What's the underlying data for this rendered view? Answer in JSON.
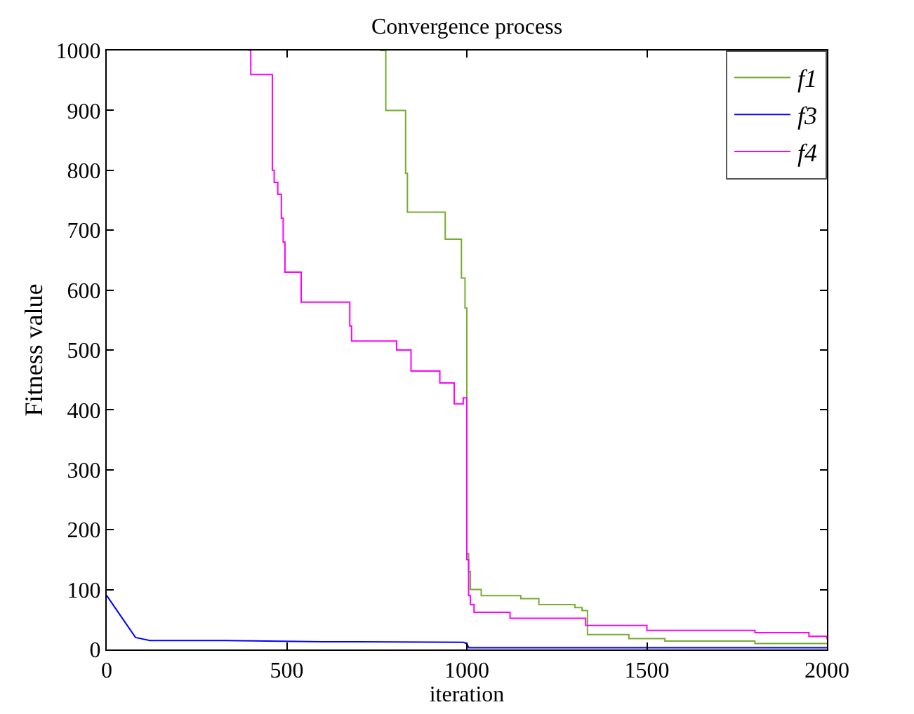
{
  "chart_data": {
    "type": "line",
    "title": "Convergence process",
    "xlabel": "iteration",
    "ylabel": "Fitness value",
    "xlim": [
      0,
      2000
    ],
    "xticks": [
      0,
      500,
      1000,
      1500,
      2000
    ],
    "ylim": [
      0,
      1000
    ],
    "yticks": [
      0,
      100,
      200,
      300,
      400,
      500,
      600,
      700,
      800,
      900,
      1000
    ],
    "grid": false,
    "legend": "top right",
    "marker": "none",
    "line_style": "solid",
    "series": [
      {
        "name": "f1",
        "type": "step",
        "color": "#77ac30",
        "x": [
          760,
          775,
          830,
          835,
          940,
          985,
          995,
          1000,
          1005,
          1010,
          1040,
          1150,
          1200,
          1300,
          1320,
          1335,
          1450,
          1550,
          1800,
          2000
        ],
        "values": [
          1000,
          900,
          795,
          730,
          685,
          620,
          570,
          160,
          130,
          100,
          90,
          85,
          75,
          70,
          65,
          25,
          18,
          14,
          10,
          10
        ]
      },
      {
        "name": "f3",
        "color": "#0000ff",
        "x": [
          0,
          80,
          120,
          330,
          600,
          990,
          1000,
          1005,
          2000
        ],
        "values": [
          90,
          20,
          15,
          15,
          13,
          12,
          10,
          3,
          3
        ]
      },
      {
        "name": "f4",
        "type": "step",
        "color": "#ff00ff",
        "x": [
          395,
          400,
          460,
          465,
          475,
          485,
          490,
          495,
          540,
          675,
          680,
          805,
          845,
          925,
          965,
          990,
          1000,
          1005,
          1010,
          1020,
          1120,
          1330,
          1500,
          1800,
          1950,
          2000
        ],
        "values": [
          1000,
          960,
          800,
          780,
          760,
          720,
          680,
          630,
          580,
          540,
          515,
          500,
          465,
          445,
          410,
          420,
          150,
          90,
          75,
          62,
          52,
          40,
          32,
          28,
          22,
          17
        ]
      }
    ]
  }
}
